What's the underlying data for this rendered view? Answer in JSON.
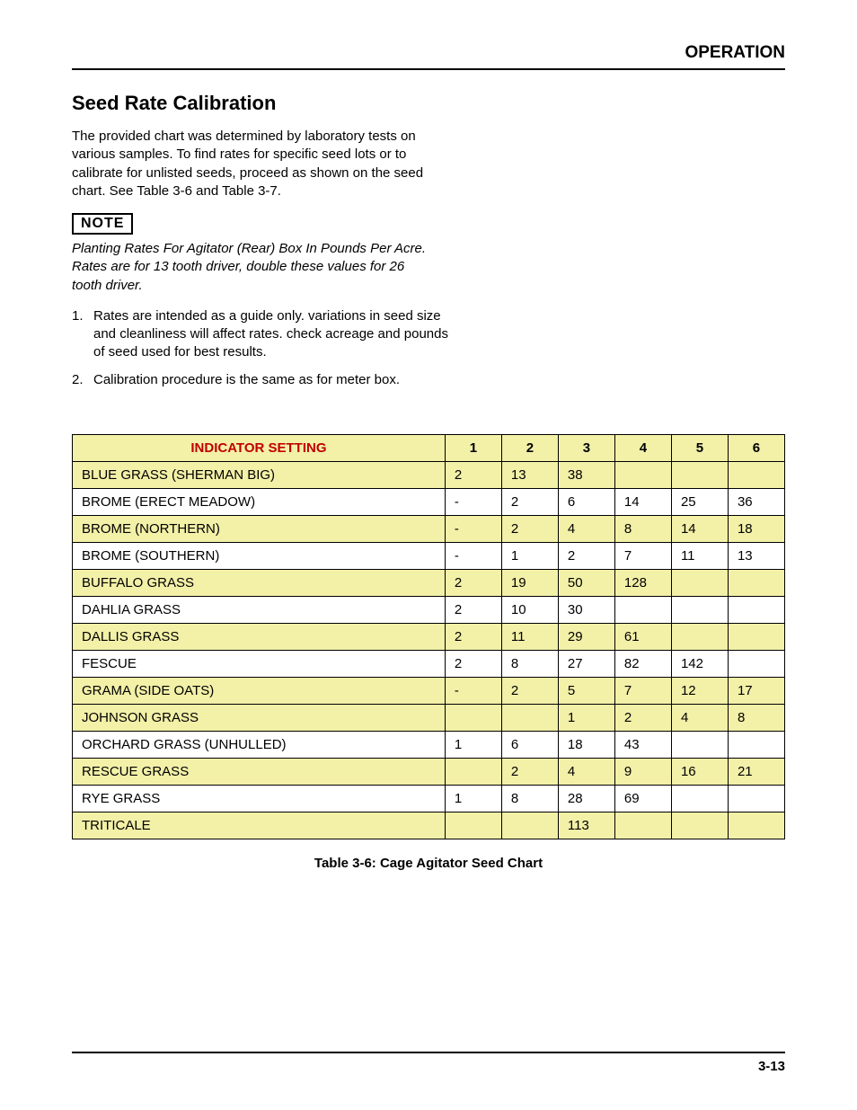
{
  "header": {
    "section": "OPERATION"
  },
  "title": "Seed Rate Calibration",
  "intro": "The provided chart was determined by laboratory tests on various samples. To find rates for specific seed lots or to calibrate for unlisted seeds, proceed as shown on the seed chart. See Table 3-6 and Table 3-7.",
  "note": {
    "label": "NOTE",
    "text": "Planting Rates For Agitator (Rear) Box In Pounds Per Acre. Rates are for 13 tooth driver, double these values for 26 tooth driver."
  },
  "list": [
    {
      "num": "1.",
      "text": "Rates are intended as a guide only. variations in seed size and cleanliness will affect rates. check acreage and pounds of seed used for best results."
    },
    {
      "num": "2.",
      "text": "Calibration procedure is the same as for meter box."
    }
  ],
  "table": {
    "header_label": "INDICATOR SETTING",
    "columns": [
      "1",
      "2",
      "3",
      "4",
      "5",
      "6"
    ],
    "rows": [
      {
        "yellow": true,
        "name": "BLUE GRASS (SHERMAN BIG)",
        "vals": [
          "2",
          "13",
          "38",
          "",
          "",
          ""
        ]
      },
      {
        "yellow": false,
        "name": "BROME (ERECT MEADOW)",
        "vals": [
          "-",
          "2",
          "6",
          "14",
          "25",
          "36"
        ]
      },
      {
        "yellow": true,
        "name": "BROME (NORTHERN)",
        "vals": [
          "-",
          "2",
          "4",
          "8",
          "14",
          "18"
        ]
      },
      {
        "yellow": false,
        "name": "BROME (SOUTHERN)",
        "vals": [
          "-",
          "1",
          "2",
          "7",
          "11",
          "13"
        ]
      },
      {
        "yellow": true,
        "name": "BUFFALO GRASS",
        "vals": [
          "2",
          "19",
          "50",
          "128",
          "",
          ""
        ]
      },
      {
        "yellow": false,
        "name": "DAHLIA GRASS",
        "vals": [
          "2",
          "10",
          "30",
          "",
          "",
          ""
        ]
      },
      {
        "yellow": true,
        "name": "DALLIS GRASS",
        "vals": [
          "2",
          "11",
          "29",
          "61",
          "",
          ""
        ]
      },
      {
        "yellow": false,
        "name": "FESCUE",
        "vals": [
          "2",
          "8",
          "27",
          "82",
          "142",
          ""
        ]
      },
      {
        "yellow": true,
        "name": "GRAMA (SIDE OATS)",
        "vals": [
          "-",
          "2",
          "5",
          "7",
          "12",
          "17"
        ]
      },
      {
        "yellow": true,
        "name": "JOHNSON GRASS",
        "vals": [
          "",
          "",
          "1",
          "2",
          "4",
          "8"
        ]
      },
      {
        "yellow": false,
        "name": "ORCHARD GRASS (UNHULLED)",
        "vals": [
          "1",
          "6",
          "18",
          "43",
          "",
          ""
        ]
      },
      {
        "yellow": true,
        "name": "RESCUE GRASS",
        "vals": [
          "",
          "2",
          "4",
          "9",
          "16",
          "21"
        ]
      },
      {
        "yellow": false,
        "name": "RYE GRASS",
        "vals": [
          "1",
          "8",
          "28",
          "69",
          "",
          ""
        ]
      },
      {
        "yellow": true,
        "name": "TRITICALE",
        "vals": [
          "",
          "",
          "113",
          "",
          "",
          ""
        ]
      }
    ],
    "caption": "Table 3-6:  Cage Agitator Seed Chart"
  },
  "footer": {
    "page": "3-13"
  },
  "colors": {
    "yellow_bg": "#f3f0a8",
    "header_red": "#c00000",
    "border": "#000000",
    "text": "#000000"
  }
}
